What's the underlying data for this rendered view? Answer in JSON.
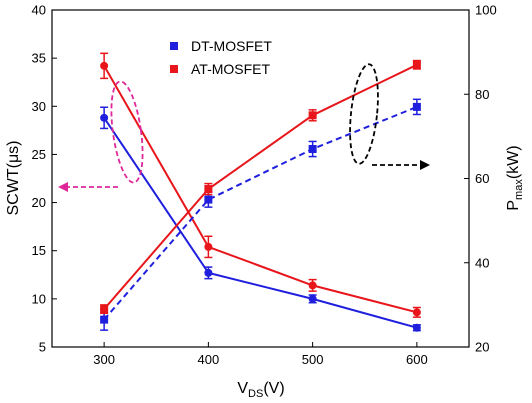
{
  "chart_data": {
    "type": "line",
    "x": [
      300,
      400,
      500,
      600
    ],
    "xlim": [
      250,
      650
    ],
    "x_ticks": [
      300,
      400,
      500,
      600
    ],
    "x_label_main": "V",
    "x_label_sub": "DS",
    "x_label_unit": "(V)",
    "y_left": {
      "label": "SCWT(μs)",
      "lim": [
        5,
        40
      ],
      "ticks": [
        5,
        10,
        15,
        20,
        25,
        30,
        35,
        40
      ]
    },
    "y_right": {
      "label_main": "P",
      "label_sub": "max",
      "label_unit": "(kW)",
      "lim": [
        20,
        100
      ],
      "ticks": [
        20,
        40,
        60,
        80,
        100
      ]
    },
    "series": [
      {
        "name": "DT-MOSFET",
        "metric": "SCWT",
        "axis": "left",
        "color": "#1f1fdd",
        "line": "solid",
        "values": [
          28.8,
          12.7,
          10.0,
          7.0
        ],
        "errors": [
          1.1,
          0.6,
          0.4,
          0.3
        ]
      },
      {
        "name": "AT-MOSFET",
        "metric": "SCWT",
        "axis": "left",
        "color": "#e8161b",
        "line": "solid",
        "values": [
          34.2,
          15.4,
          11.4,
          8.6
        ],
        "errors": [
          1.3,
          1.1,
          0.6,
          0.5
        ]
      },
      {
        "name": "DT-MOSFET",
        "metric": "Pmax",
        "axis": "right",
        "color": "#1f1fdd",
        "line": "dashed",
        "values": [
          26.5,
          55.0,
          67.0,
          77.0
        ],
        "errors": [
          2.5,
          1.8,
          1.8,
          1.8
        ]
      },
      {
        "name": "AT-MOSFET",
        "metric": "Pmax",
        "axis": "right",
        "color": "#e8161b",
        "line": "solid",
        "values": [
          29.0,
          57.5,
          75.0,
          87.0
        ],
        "errors": [
          1.0,
          1.3,
          1.3,
          1.0
        ]
      }
    ],
    "legend": {
      "position": "top-center",
      "entries": [
        {
          "label": "DT-MOSFET",
          "color": "#1f1fdd"
        },
        {
          "label": "AT-MOSFET",
          "color": "#e8161b"
        }
      ]
    },
    "annotations": [
      {
        "shape": "ellipse-dashed",
        "color": "#e0279a",
        "arrow_direction": "left",
        "refers_to_axis": "left"
      },
      {
        "shape": "ellipse-dashed",
        "color": "#000000",
        "arrow_direction": "right",
        "refers_to_axis": "right"
      }
    ],
    "grid": false
  }
}
